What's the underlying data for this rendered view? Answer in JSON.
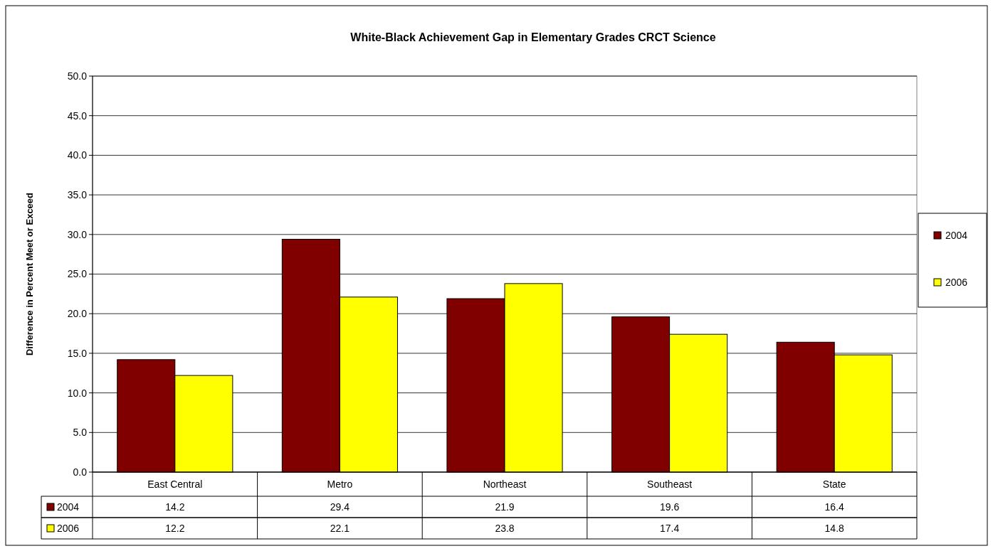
{
  "chart_data": {
    "type": "bar",
    "title": "White-Black Achievement Gap in Elementary Grades CRCT Science",
    "ylabel": "Difference in Percent Meet or Exceed",
    "categories": [
      "East Central",
      "Metro",
      "Northeast",
      "Southeast",
      "State"
    ],
    "series": [
      {
        "name": "2004",
        "color": "#800000",
        "values": [
          14.2,
          29.4,
          21.9,
          19.6,
          16.4
        ]
      },
      {
        "name": "2006",
        "color": "#ffff00",
        "values": [
          12.2,
          22.1,
          23.8,
          17.4,
          14.8
        ]
      }
    ],
    "ylim": [
      0,
      50
    ],
    "yticks": [
      {
        "value": 0,
        "label": "0.0"
      },
      {
        "value": 5,
        "label": "5.0"
      },
      {
        "value": 10,
        "label": "10.0"
      },
      {
        "value": 15,
        "label": "15.0"
      },
      {
        "value": 20,
        "label": "20.0"
      },
      {
        "value": 25,
        "label": "25.0"
      },
      {
        "value": 30,
        "label": "30.0"
      },
      {
        "value": 35,
        "label": "35.0"
      },
      {
        "value": 40,
        "label": "40.0"
      },
      {
        "value": 45,
        "label": "45.0"
      },
      {
        "value": 50,
        "label": "50.0"
      }
    ],
    "grid": "y",
    "legend": "right",
    "data_labels": true
  }
}
